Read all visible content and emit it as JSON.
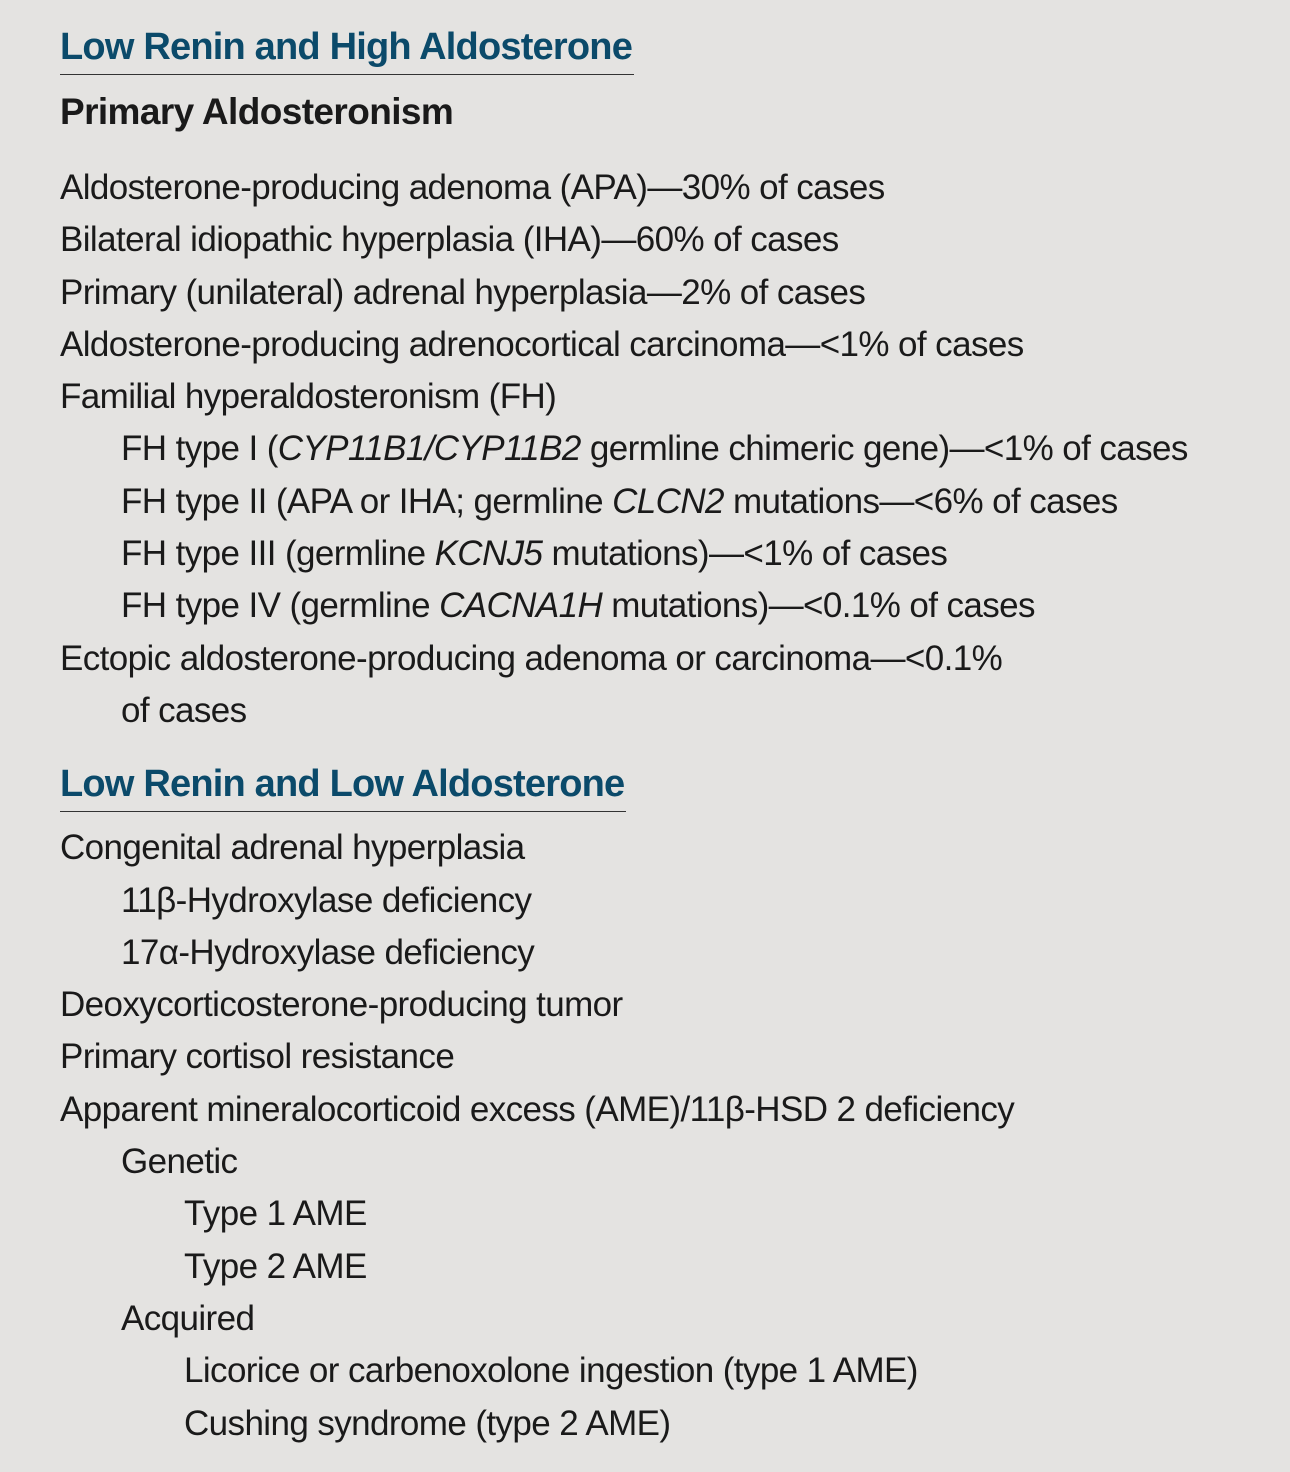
{
  "section1": {
    "heading": "Low Renin and High Aldosterone",
    "subheading": "Primary Aldosteronism",
    "items": [
      {
        "text": "Aldosterone-producing adenoma (APA)—30% of cases"
      },
      {
        "text": "Bilateral idiopathic hyperplasia (IHA)—60% of cases"
      },
      {
        "text": "Primary (unilateral) adrenal hyperplasia—2% of cases"
      },
      {
        "text": "Aldosterone-producing adrenocortical carcinoma—<1% of cases"
      },
      {
        "text": "Familial hyperaldosteronism (FH)"
      },
      {
        "pre": "FH type I (",
        "italic": "CYP11B1/CYP11B2",
        "post": " germline chimeric gene)—<1% of cases"
      },
      {
        "pre": "FH type II (APA or IHA; germline ",
        "italic": "CLCN2",
        "post": " mutations—<6% of cases"
      },
      {
        "pre": "FH type III (germline ",
        "italic": "KCNJ5",
        "post": " mutations)—<1% of cases"
      },
      {
        "pre": "FH type IV (germline ",
        "italic": "CACNA1H",
        "post": " mutations)—<0.1% of cases"
      },
      {
        "text": "Ectopic aldosterone-producing adenoma or carcinoma—<0.1%"
      },
      {
        "text": "of cases"
      }
    ]
  },
  "section2": {
    "heading": "Low Renin and Low Aldosterone",
    "items": [
      {
        "text": "Congenital adrenal hyperplasia"
      },
      {
        "text": "11β-Hydroxylase deficiency"
      },
      {
        "text": "17α-Hydroxylase deficiency"
      },
      {
        "text": "Deoxycorticosterone-producing tumor"
      },
      {
        "text": "Primary cortisol resistance"
      },
      {
        "text": "Apparent mineralocorticoid excess (AME)/11β-HSD 2 deficiency"
      },
      {
        "text": "Genetic"
      },
      {
        "text": "Type 1 AME"
      },
      {
        "text": "Type 2 AME"
      },
      {
        "text": "Acquired"
      },
      {
        "text": "Licorice or carbenoxolone ingestion (type 1 AME)"
      },
      {
        "text": "Cushing syndrome (type 2 AME)"
      }
    ]
  }
}
